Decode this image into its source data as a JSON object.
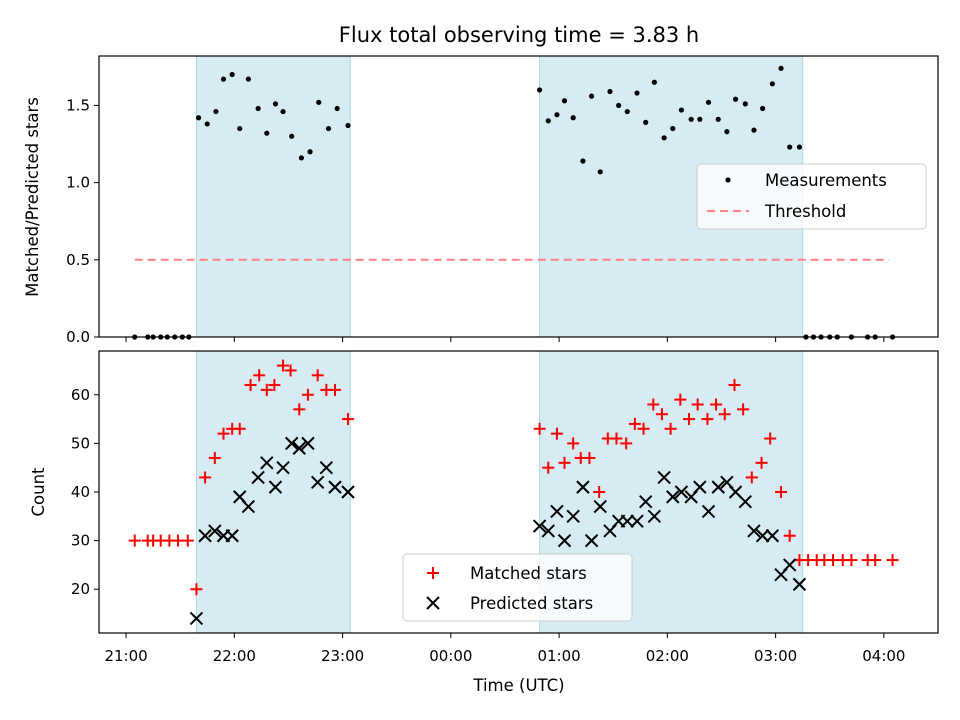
{
  "figure": {
    "title": "Flux total observing time = 3.83 h",
    "xlabel": "Time (UTC)"
  },
  "colors": {
    "shade": "#add8e6",
    "measurements": "#000000",
    "threshold": "#ff8080",
    "matched": "#ff0000",
    "predicted": "#000000"
  },
  "chart_data": [
    {
      "type": "scatter",
      "panel": "top",
      "ylabel": "Matched/Predicted stars",
      "xlim_hours": [
        20.75,
        28.5
      ],
      "ylim": [
        0,
        1.82
      ],
      "yticks": [
        0.0,
        0.5,
        1.0,
        1.5
      ],
      "ytick_labels": [
        "0.0",
        "0.5",
        "1.0",
        "1.5"
      ],
      "xticks_hours": [
        21,
        22,
        23,
        24,
        25,
        26,
        27,
        28
      ],
      "xtick_labels": [
        "21:00",
        "22:00",
        "23:00",
        "00:00",
        "01:00",
        "02:00",
        "03:00",
        "04:00"
      ],
      "shaded_intervals_hours": [
        [
          21.65,
          23.07
        ],
        [
          24.82,
          27.25
        ]
      ],
      "legend_position": "center-right",
      "series": [
        {
          "name": "Measurements",
          "marker": "dot",
          "points": [
            [
              21.08,
              0.0
            ],
            [
              21.2,
              0.0
            ],
            [
              21.25,
              0.0
            ],
            [
              21.32,
              0.0
            ],
            [
              21.38,
              0.0
            ],
            [
              21.45,
              0.0
            ],
            [
              21.52,
              0.0
            ],
            [
              21.58,
              0.0
            ],
            [
              21.67,
              1.42
            ],
            [
              21.75,
              1.38
            ],
            [
              21.83,
              1.46
            ],
            [
              21.9,
              1.67
            ],
            [
              21.98,
              1.7
            ],
            [
              22.05,
              1.35
            ],
            [
              22.13,
              1.67
            ],
            [
              22.22,
              1.48
            ],
            [
              22.3,
              1.32
            ],
            [
              22.38,
              1.51
            ],
            [
              22.45,
              1.46
            ],
            [
              22.53,
              1.3
            ],
            [
              22.62,
              1.16
            ],
            [
              22.7,
              1.2
            ],
            [
              22.78,
              1.52
            ],
            [
              22.87,
              1.35
            ],
            [
              22.95,
              1.48
            ],
            [
              23.05,
              1.37
            ],
            [
              24.82,
              1.6
            ],
            [
              24.9,
              1.4
            ],
            [
              24.98,
              1.44
            ],
            [
              25.05,
              1.53
            ],
            [
              25.13,
              1.42
            ],
            [
              25.22,
              1.14
            ],
            [
              25.3,
              1.56
            ],
            [
              25.38,
              1.07
            ],
            [
              25.47,
              1.59
            ],
            [
              25.55,
              1.5
            ],
            [
              25.63,
              1.46
            ],
            [
              25.72,
              1.58
            ],
            [
              25.8,
              1.39
            ],
            [
              25.88,
              1.65
            ],
            [
              25.97,
              1.29
            ],
            [
              26.05,
              1.35
            ],
            [
              26.13,
              1.47
            ],
            [
              26.22,
              1.41
            ],
            [
              26.3,
              1.41
            ],
            [
              26.38,
              1.52
            ],
            [
              26.47,
              1.41
            ],
            [
              26.55,
              1.33
            ],
            [
              26.63,
              1.54
            ],
            [
              26.72,
              1.51
            ],
            [
              26.8,
              1.34
            ],
            [
              26.88,
              1.48
            ],
            [
              26.97,
              1.64
            ],
            [
              27.05,
              1.74
            ],
            [
              27.13,
              1.23
            ],
            [
              27.22,
              1.23
            ],
            [
              27.28,
              0.0
            ],
            [
              27.35,
              0.0
            ],
            [
              27.42,
              0.0
            ],
            [
              27.5,
              0.0
            ],
            [
              27.57,
              0.0
            ],
            [
              27.7,
              0.0
            ],
            [
              27.85,
              0.0
            ],
            [
              27.92,
              0.0
            ],
            [
              28.08,
              0.0
            ]
          ]
        },
        {
          "name": "Threshold",
          "style": "dashed",
          "points": [
            [
              21.08,
              0.5
            ],
            [
              28.05,
              0.5
            ]
          ]
        }
      ]
    },
    {
      "type": "scatter",
      "panel": "bottom",
      "ylabel": "Count",
      "xlim_hours": [
        20.75,
        28.5
      ],
      "ylim": [
        11,
        69
      ],
      "yticks": [
        20,
        30,
        40,
        50,
        60
      ],
      "ytick_labels": [
        "20",
        "30",
        "40",
        "50",
        "60"
      ],
      "xticks_hours": [
        21,
        22,
        23,
        24,
        25,
        26,
        27,
        28
      ],
      "xtick_labels": [
        "21:00",
        "22:00",
        "23:00",
        "00:00",
        "01:00",
        "02:00",
        "03:00",
        "04:00"
      ],
      "shaded_intervals_hours": [
        [
          21.65,
          23.07
        ],
        [
          24.82,
          27.25
        ]
      ],
      "legend_position": "lower-center",
      "series": [
        {
          "name": "Matched stars",
          "marker": "plus",
          "points": [
            [
              21.08,
              30
            ],
            [
              21.2,
              30
            ],
            [
              21.25,
              30
            ],
            [
              21.32,
              30
            ],
            [
              21.4,
              30
            ],
            [
              21.48,
              30
            ],
            [
              21.57,
              30
            ],
            [
              21.65,
              20
            ],
            [
              21.73,
              43
            ],
            [
              21.82,
              47
            ],
            [
              21.9,
              52
            ],
            [
              21.98,
              53
            ],
            [
              22.05,
              53
            ],
            [
              22.15,
              62
            ],
            [
              22.23,
              64
            ],
            [
              22.3,
              61
            ],
            [
              22.37,
              62
            ],
            [
              22.45,
              66
            ],
            [
              22.52,
              65
            ],
            [
              22.6,
              57
            ],
            [
              22.68,
              60
            ],
            [
              22.77,
              64
            ],
            [
              22.85,
              61
            ],
            [
              22.93,
              61
            ],
            [
              23.05,
              55
            ],
            [
              24.82,
              53
            ],
            [
              24.9,
              45
            ],
            [
              24.98,
              52
            ],
            [
              25.05,
              46
            ],
            [
              25.13,
              50
            ],
            [
              25.2,
              47
            ],
            [
              25.28,
              47
            ],
            [
              25.37,
              40
            ],
            [
              25.45,
              51
            ],
            [
              25.53,
              51
            ],
            [
              25.62,
              50
            ],
            [
              25.7,
              54
            ],
            [
              25.78,
              53
            ],
            [
              25.87,
              58
            ],
            [
              25.95,
              56
            ],
            [
              26.03,
              53
            ],
            [
              26.12,
              59
            ],
            [
              26.2,
              55
            ],
            [
              26.28,
              58
            ],
            [
              26.37,
              55
            ],
            [
              26.45,
              58
            ],
            [
              26.53,
              56
            ],
            [
              26.62,
              62
            ],
            [
              26.7,
              57
            ],
            [
              26.78,
              43
            ],
            [
              26.87,
              46
            ],
            [
              26.95,
              51
            ],
            [
              27.05,
              40
            ],
            [
              27.13,
              31
            ],
            [
              27.22,
              26
            ],
            [
              27.3,
              26
            ],
            [
              27.38,
              26
            ],
            [
              27.45,
              26
            ],
            [
              27.53,
              26
            ],
            [
              27.62,
              26
            ],
            [
              27.7,
              26
            ],
            [
              27.85,
              26
            ],
            [
              27.92,
              26
            ],
            [
              28.08,
              26
            ]
          ]
        },
        {
          "name": "Predicted stars",
          "marker": "x",
          "points": [
            [
              21.65,
              14
            ],
            [
              21.73,
              31
            ],
            [
              21.82,
              32
            ],
            [
              21.9,
              31
            ],
            [
              21.98,
              31
            ],
            [
              22.05,
              39
            ],
            [
              22.13,
              37
            ],
            [
              22.22,
              43
            ],
            [
              22.3,
              46
            ],
            [
              22.38,
              41
            ],
            [
              22.45,
              45
            ],
            [
              22.53,
              50
            ],
            [
              22.6,
              49
            ],
            [
              22.68,
              50
            ],
            [
              22.77,
              42
            ],
            [
              22.85,
              45
            ],
            [
              22.93,
              41
            ],
            [
              23.05,
              40
            ],
            [
              24.82,
              33
            ],
            [
              24.9,
              32
            ],
            [
              24.98,
              36
            ],
            [
              25.05,
              30
            ],
            [
              25.13,
              35
            ],
            [
              25.22,
              41
            ],
            [
              25.3,
              30
            ],
            [
              25.38,
              37
            ],
            [
              25.47,
              32
            ],
            [
              25.55,
              34
            ],
            [
              25.63,
              34
            ],
            [
              25.72,
              34
            ],
            [
              25.8,
              38
            ],
            [
              25.88,
              35
            ],
            [
              25.97,
              43
            ],
            [
              26.05,
              39
            ],
            [
              26.13,
              40
            ],
            [
              26.22,
              39
            ],
            [
              26.3,
              41
            ],
            [
              26.38,
              36
            ],
            [
              26.47,
              41
            ],
            [
              26.55,
              42
            ],
            [
              26.63,
              40
            ],
            [
              26.72,
              38
            ],
            [
              26.8,
              32
            ],
            [
              26.88,
              31
            ],
            [
              26.97,
              31
            ],
            [
              27.05,
              23
            ],
            [
              27.13,
              25
            ],
            [
              27.22,
              21
            ]
          ]
        }
      ]
    }
  ]
}
